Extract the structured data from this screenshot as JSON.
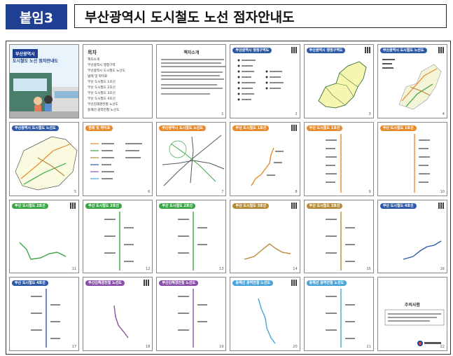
{
  "header": {
    "tag": "붙임3",
    "title": "부산광역시 도시철도 노선 점자안내도"
  },
  "cover": {
    "line1": "부산광역시",
    "line2": "도시철도 노선 점자안내도"
  },
  "toc": {
    "title": "목차",
    "items": [
      "책자소개",
      "부산광역시 행정구역",
      "부산광역시 도시철도 노선도",
      "범례 및 약어표",
      "부산 도시철도 1호선",
      "부산 도시철도 2호선",
      "부산 도시철도 3호선",
      "부산 도시철도 4호선",
      "부산김해경전철 노선도",
      "동해선 광역전철 노선도"
    ]
  },
  "intro": {
    "title": "책자소개"
  },
  "admin": {
    "ribbon": "부산광역시 행정구역도"
  },
  "network": {
    "ribbon": "부산광역시 도시철도 노선도"
  },
  "legend": {
    "ribbon": "범례 및 약어표"
  },
  "lines": {
    "l1": "부산 도시철도 1호선",
    "l2": "부산 도시철도 2호선",
    "l3": "부산 도시철도 3호선",
    "l4": "부산 도시철도 4호선",
    "bgl": "부산김해경전철 노선도",
    "donghae": "동해선 광역전철 노선도"
  },
  "closing": {
    "title": "주의사항"
  },
  "page_numbers": [
    "1",
    "2",
    "3",
    "4",
    "5",
    "6",
    "7",
    "8",
    "9",
    "10",
    "11",
    "12",
    "13",
    "14",
    "15",
    "16",
    "17",
    "18",
    "19",
    "20",
    "21",
    "22",
    "23"
  ]
}
